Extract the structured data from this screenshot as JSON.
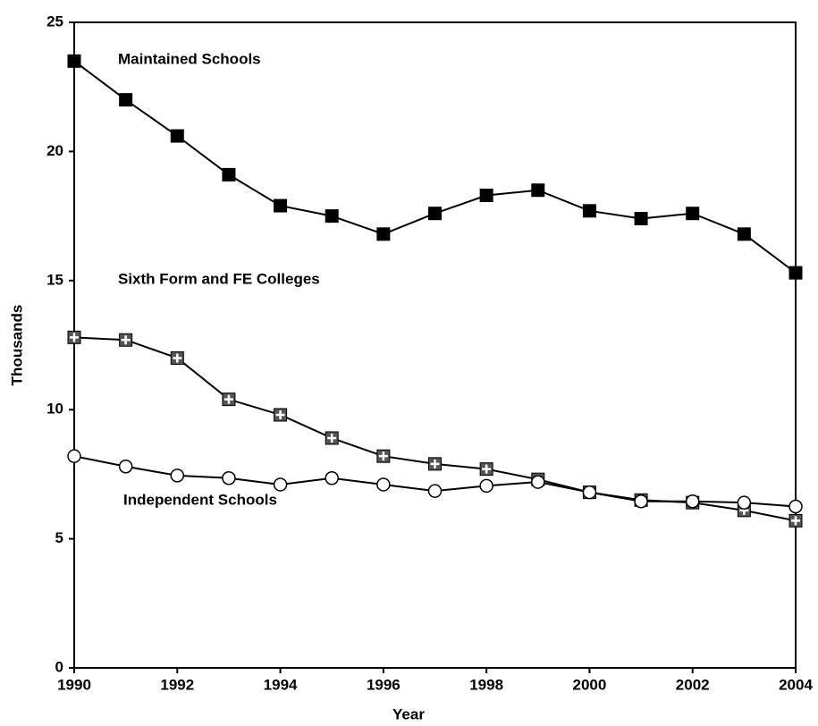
{
  "chart_data": {
    "type": "line",
    "x": [
      1990,
      1991,
      1992,
      1993,
      1994,
      1995,
      1996,
      1997,
      1998,
      1999,
      2000,
      2001,
      2002,
      2003,
      2004
    ],
    "series": [
      {
        "name": "Maintained Schools",
        "color": "#000000",
        "marker": "square",
        "values": [
          23.5,
          22.0,
          20.6,
          19.1,
          17.9,
          17.5,
          16.8,
          17.6,
          18.3,
          18.5,
          17.7,
          17.4,
          17.6,
          16.8,
          15.3
        ]
      },
      {
        "name": "Sixth Form and FE Colleges",
        "color": "#555555",
        "marker": "cross-square",
        "values": [
          12.8,
          12.7,
          12.0,
          10.4,
          9.8,
          8.9,
          8.2,
          7.9,
          7.7,
          7.3,
          6.8,
          6.5,
          6.4,
          6.1,
          5.7
        ]
      },
      {
        "name": "Independent Schools",
        "color": "#000000",
        "marker": "circle",
        "values": [
          8.2,
          7.8,
          7.45,
          7.35,
          7.1,
          7.35,
          7.1,
          6.85,
          7.05,
          7.2,
          6.8,
          6.45,
          6.45,
          6.4,
          6.25
        ]
      }
    ],
    "xlabel": "Year",
    "ylabel": "Thousands",
    "xlim": [
      1990,
      2004
    ],
    "xticks": [
      1990,
      1992,
      1994,
      1996,
      1998,
      2000,
      2002,
      2004
    ],
    "ylim": [
      0,
      25
    ],
    "yticks": [
      0,
      5,
      10,
      15,
      20,
      25
    ],
    "grid": false
  }
}
